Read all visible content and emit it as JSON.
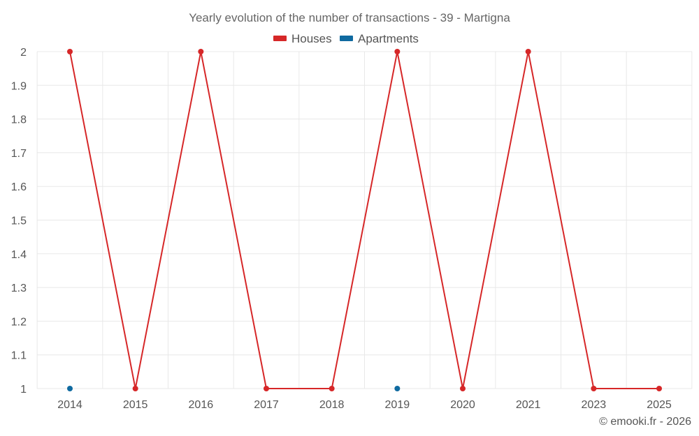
{
  "chart_data": {
    "type": "line",
    "title": "Yearly evolution of the number of transactions - 39 - Martigna",
    "categories": [
      "2014",
      "2015",
      "2016",
      "2017",
      "2018",
      "2019",
      "2020",
      "2021",
      "2023",
      "2025"
    ],
    "series": [
      {
        "name": "Houses",
        "color": "#d62728",
        "values": [
          2,
          1,
          2,
          1,
          1,
          2,
          1,
          2,
          1,
          1
        ],
        "show_line": true
      },
      {
        "name": "Apartments",
        "color": "#0f6aa0",
        "values": [
          1,
          null,
          null,
          null,
          null,
          1,
          null,
          null,
          null,
          null
        ],
        "show_line": false
      }
    ],
    "ylim": [
      1,
      2
    ],
    "yticks": [
      "1",
      "1.1",
      "1.2",
      "1.3",
      "1.4",
      "1.5",
      "1.6",
      "1.7",
      "1.8",
      "1.9",
      "2"
    ],
    "grid": true,
    "legend_position": "top-center"
  },
  "credit": "© emooki.fr - 2026"
}
